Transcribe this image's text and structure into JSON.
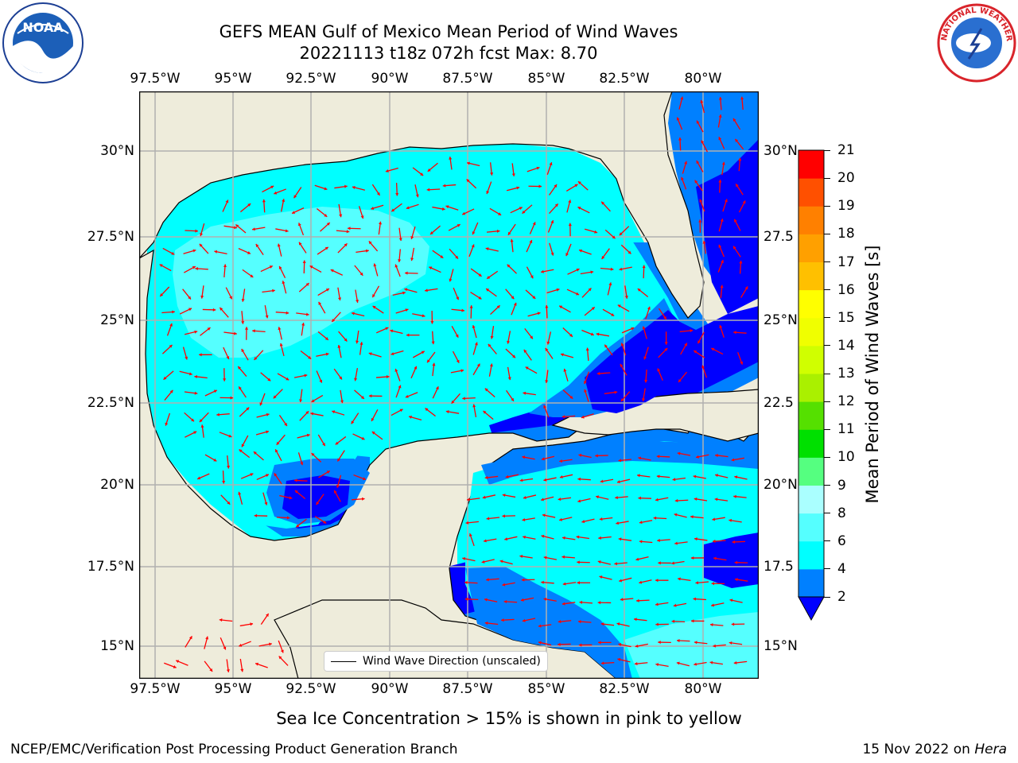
{
  "header": {
    "title_line1": "GEFS MEAN Gulf of Mexico Mean Period of Wind Waves",
    "title_line2": "20221113 t18z 072h fcst   Max: 8.70",
    "left_logo_text": "NOAA",
    "right_logo_text": "NATIONAL WEATHER SERVICE"
  },
  "map": {
    "lon_ticks": [
      "97.5°W",
      "95°W",
      "92.5°W",
      "90°W",
      "87.5°W",
      "85°W",
      "82.5°W",
      "80°W"
    ],
    "lat_ticks": [
      "30°N",
      "27.5°N",
      "25°N",
      "22.5°N",
      "20°N",
      "17.5°N",
      "15°N"
    ],
    "lat_ticks_right": [
      "30°N",
      "27.5",
      "25°N",
      "22.5",
      "20°N",
      "17.5",
      "15°N"
    ],
    "legend_label": "Wind Wave Direction (unscaled)",
    "colors": {
      "land": "#eeecdb",
      "ocean_cyan": "#00ffff",
      "ocean_light_cyan": "#55ffff",
      "ocean_mid_blue": "#0080ff",
      "ocean_blue": "#0000ff",
      "arrow": "#ff0000",
      "grid": "#b0b0b0"
    }
  },
  "colorbar": {
    "label": "Mean Period of Wind Waves [s]",
    "ticks": [
      "2",
      "4",
      "6",
      "8",
      "9",
      "10",
      "11",
      "12",
      "13",
      "14",
      "15",
      "16",
      "17",
      "18",
      "19",
      "20",
      "21"
    ],
    "bins": [
      {
        "from": 2,
        "to": 4,
        "color": "#0080ff"
      },
      {
        "from": 4,
        "to": 6,
        "color": "#00ffff"
      },
      {
        "from": 6,
        "to": 8,
        "color": "#55ffff"
      },
      {
        "from": 8,
        "to": 9,
        "color": "#aaffff"
      },
      {
        "from": 9,
        "to": 10,
        "color": "#55ff80"
      },
      {
        "from": 10,
        "to": 11,
        "color": "#00e000"
      },
      {
        "from": 11,
        "to": 12,
        "color": "#55e000"
      },
      {
        "from": 12,
        "to": 13,
        "color": "#aaf000"
      },
      {
        "from": 13,
        "to": 14,
        "color": "#d0ff00"
      },
      {
        "from": 14,
        "to": 15,
        "color": "#f0ff00"
      },
      {
        "from": 15,
        "to": 16,
        "color": "#ffff00"
      },
      {
        "from": 16,
        "to": 17,
        "color": "#ffc000"
      },
      {
        "from": 17,
        "to": 18,
        "color": "#ffa000"
      },
      {
        "from": 18,
        "to": 19,
        "color": "#ff8000"
      },
      {
        "from": 19,
        "to": 20,
        "color": "#ff5000"
      },
      {
        "from": 20,
        "to": 21,
        "color": "#ff0000"
      }
    ],
    "under_color": "#0000ff"
  },
  "footer": {
    "sea_ice_note": "Sea Ice Concentration > 15% is shown in pink to yellow",
    "producer": "NCEP/EMC/Verification Post Processing Product Generation Branch",
    "date": "15 Nov 2022 on ",
    "machine": "Hera"
  }
}
